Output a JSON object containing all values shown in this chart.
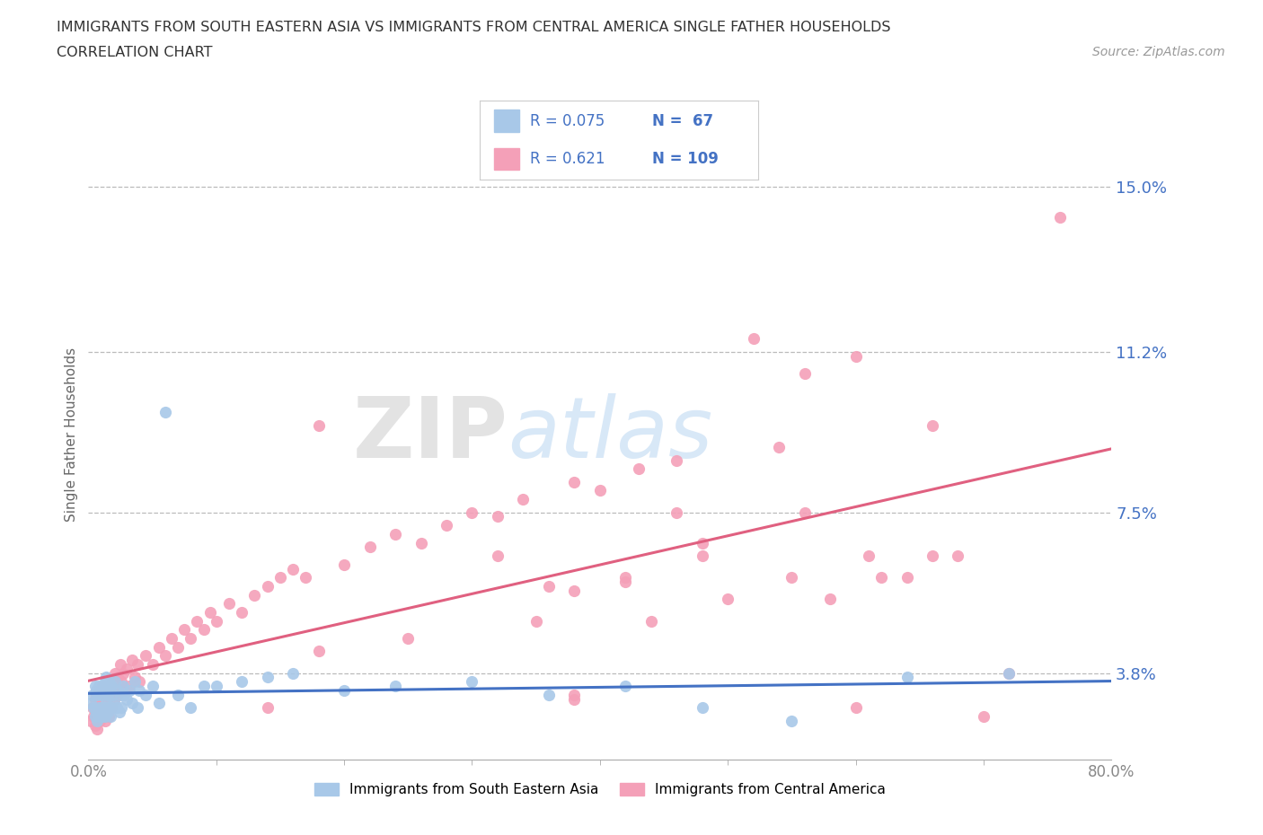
{
  "title_line1": "IMMIGRANTS FROM SOUTH EASTERN ASIA VS IMMIGRANTS FROM CENTRAL AMERICA SINGLE FATHER HOUSEHOLDS",
  "title_line2": "CORRELATION CHART",
  "source": "Source: ZipAtlas.com",
  "ylabel": "Single Father Households",
  "xmin": 0.0,
  "xmax": 0.8,
  "ymin": 0.018,
  "ymax": 0.168,
  "yticks": [
    0.038,
    0.075,
    0.112,
    0.15
  ],
  "ytick_labels": [
    "3.8%",
    "7.5%",
    "11.2%",
    "15.0%"
  ],
  "xtick_left_label": "0.0%",
  "xtick_right_label": "80.0%",
  "hlines": [
    0.038,
    0.075,
    0.112,
    0.15
  ],
  "color_blue": "#a8c8e8",
  "color_pink": "#f4a0b8",
  "color_blue_line": "#4472C4",
  "color_pink_line": "#e06080",
  "R_blue": 0.075,
  "N_blue": 67,
  "R_pink": 0.621,
  "N_pink": 109,
  "blue_scatter_x": [
    0.002,
    0.003,
    0.004,
    0.005,
    0.005,
    0.006,
    0.006,
    0.007,
    0.007,
    0.008,
    0.008,
    0.009,
    0.009,
    0.01,
    0.01,
    0.011,
    0.011,
    0.012,
    0.012,
    0.013,
    0.013,
    0.014,
    0.014,
    0.015,
    0.015,
    0.016,
    0.016,
    0.017,
    0.017,
    0.018,
    0.018,
    0.019,
    0.02,
    0.021,
    0.022,
    0.023,
    0.024,
    0.025,
    0.026,
    0.027,
    0.028,
    0.03,
    0.032,
    0.034,
    0.036,
    0.038,
    0.04,
    0.045,
    0.05,
    0.055,
    0.06,
    0.07,
    0.08,
    0.09,
    0.1,
    0.12,
    0.14,
    0.16,
    0.2,
    0.24,
    0.3,
    0.36,
    0.42,
    0.48,
    0.55,
    0.64,
    0.72
  ],
  "blue_scatter_y": [
    0.031,
    0.033,
    0.03,
    0.028,
    0.035,
    0.029,
    0.034,
    0.027,
    0.033,
    0.03,
    0.035,
    0.028,
    0.034,
    0.03,
    0.033,
    0.028,
    0.035,
    0.03,
    0.034,
    0.028,
    0.036,
    0.031,
    0.037,
    0.029,
    0.033,
    0.03,
    0.036,
    0.028,
    0.034,
    0.03,
    0.035,
    0.033,
    0.031,
    0.036,
    0.03,
    0.034,
    0.029,
    0.033,
    0.03,
    0.035,
    0.033,
    0.032,
    0.034,
    0.031,
    0.036,
    0.03,
    0.034,
    0.033,
    0.035,
    0.031,
    0.098,
    0.033,
    0.03,
    0.035,
    0.035,
    0.036,
    0.037,
    0.038,
    0.034,
    0.035,
    0.036,
    0.033,
    0.035,
    0.03,
    0.027,
    0.037,
    0.038
  ],
  "pink_scatter_x": [
    0.002,
    0.003,
    0.004,
    0.005,
    0.005,
    0.006,
    0.006,
    0.007,
    0.007,
    0.008,
    0.008,
    0.009,
    0.009,
    0.01,
    0.01,
    0.011,
    0.011,
    0.012,
    0.012,
    0.013,
    0.013,
    0.014,
    0.014,
    0.015,
    0.015,
    0.016,
    0.017,
    0.018,
    0.019,
    0.02,
    0.021,
    0.022,
    0.023,
    0.024,
    0.025,
    0.026,
    0.027,
    0.028,
    0.03,
    0.032,
    0.034,
    0.036,
    0.038,
    0.04,
    0.045,
    0.05,
    0.055,
    0.06,
    0.065,
    0.07,
    0.075,
    0.08,
    0.085,
    0.09,
    0.095,
    0.1,
    0.11,
    0.12,
    0.13,
    0.14,
    0.15,
    0.16,
    0.17,
    0.18,
    0.2,
    0.22,
    0.24,
    0.26,
    0.28,
    0.3,
    0.32,
    0.34,
    0.36,
    0.38,
    0.4,
    0.43,
    0.46,
    0.5,
    0.54,
    0.58,
    0.62,
    0.66,
    0.7,
    0.48,
    0.52,
    0.56,
    0.32,
    0.6,
    0.64,
    0.68,
    0.38,
    0.42,
    0.46,
    0.72,
    0.76,
    0.6,
    0.35,
    0.25,
    0.18,
    0.14,
    0.44,
    0.38,
    0.48,
    0.55,
    0.42,
    0.38,
    0.56,
    0.61,
    0.66
  ],
  "pink_scatter_y": [
    0.027,
    0.03,
    0.028,
    0.026,
    0.032,
    0.028,
    0.033,
    0.025,
    0.031,
    0.028,
    0.034,
    0.027,
    0.033,
    0.03,
    0.028,
    0.035,
    0.03,
    0.028,
    0.033,
    0.031,
    0.027,
    0.034,
    0.029,
    0.033,
    0.031,
    0.028,
    0.034,
    0.03,
    0.036,
    0.032,
    0.038,
    0.033,
    0.037,
    0.035,
    0.04,
    0.036,
    0.038,
    0.034,
    0.039,
    0.035,
    0.041,
    0.037,
    0.04,
    0.036,
    0.042,
    0.04,
    0.044,
    0.042,
    0.046,
    0.044,
    0.048,
    0.046,
    0.05,
    0.048,
    0.052,
    0.05,
    0.054,
    0.052,
    0.056,
    0.058,
    0.06,
    0.062,
    0.06,
    0.095,
    0.063,
    0.067,
    0.07,
    0.068,
    0.072,
    0.075,
    0.074,
    0.078,
    0.058,
    0.082,
    0.08,
    0.085,
    0.087,
    0.055,
    0.09,
    0.055,
    0.06,
    0.095,
    0.028,
    0.065,
    0.115,
    0.107,
    0.065,
    0.03,
    0.06,
    0.065,
    0.057,
    0.059,
    0.075,
    0.038,
    0.143,
    0.111,
    0.05,
    0.046,
    0.043,
    0.03,
    0.05,
    0.032,
    0.068,
    0.06,
    0.06,
    0.033,
    0.075,
    0.065,
    0.065
  ],
  "watermark_zip": "ZIP",
  "watermark_atlas": "atlas",
  "background_color": "#ffffff",
  "grid_color": "#bbbbbb",
  "legend_R_color": "#4472C4",
  "legend_N_color": "#4472C4",
  "axis_label_color": "#4472C4",
  "tick_color": "#888888"
}
